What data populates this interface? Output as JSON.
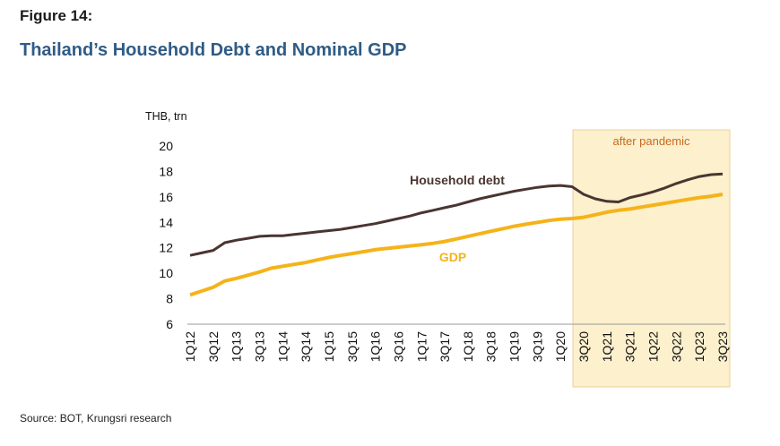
{
  "header": {
    "figure_label": "Figure 14:",
    "title": "Thailand’s Household Debt and Nominal GDP"
  },
  "footer": {
    "source": "Source: BOT, Krungsri research"
  },
  "colors": {
    "debt": "#4a3530",
    "gdp": "#f5b31a",
    "shade_fill": "#fcf0cd",
    "shade_border": "#e8d29a",
    "shade_text": "#c86a1e",
    "axis": "#999999"
  },
  "chart_data": {
    "type": "line",
    "title": "Thailand’s Household Debt and Nominal GDP",
    "ylabel": "THB, trn",
    "xlabel": "",
    "ylim": [
      6,
      20
    ],
    "yticks": [
      6,
      8,
      10,
      12,
      14,
      16,
      18,
      20
    ],
    "x": [
      "1Q12",
      "2Q12",
      "3Q12",
      "4Q12",
      "1Q13",
      "2Q13",
      "3Q13",
      "4Q13",
      "1Q14",
      "2Q14",
      "3Q14",
      "4Q14",
      "1Q15",
      "2Q15",
      "3Q15",
      "4Q15",
      "1Q16",
      "2Q16",
      "3Q16",
      "4Q16",
      "1Q17",
      "2Q17",
      "3Q17",
      "4Q17",
      "1Q18",
      "2Q18",
      "3Q18",
      "4Q18",
      "1Q19",
      "2Q19",
      "3Q19",
      "4Q19",
      "1Q20",
      "2Q20",
      "3Q20",
      "4Q20",
      "1Q21",
      "2Q21",
      "3Q21",
      "4Q21",
      "1Q22",
      "2Q22",
      "3Q22",
      "4Q22",
      "1Q23",
      "2Q23",
      "3Q23"
    ],
    "x_tick_labels": [
      "1Q12",
      "3Q12",
      "1Q13",
      "3Q13",
      "1Q14",
      "3Q14",
      "1Q15",
      "3Q15",
      "1Q16",
      "3Q16",
      "1Q17",
      "3Q17",
      "1Q18",
      "3Q18",
      "1Q19",
      "3Q19",
      "1Q20",
      "3Q20",
      "1Q21",
      "3Q21",
      "1Q22",
      "3Q22",
      "1Q23",
      "3Q23"
    ],
    "series": [
      {
        "name": "Household debt",
        "values": [
          11.4,
          11.6,
          11.8,
          12.4,
          12.6,
          12.75,
          12.9,
          12.95,
          12.95,
          13.05,
          13.15,
          13.25,
          13.35,
          13.45,
          13.6,
          13.75,
          13.9,
          14.1,
          14.3,
          14.5,
          14.75,
          14.95,
          15.15,
          15.35,
          15.6,
          15.85,
          16.05,
          16.25,
          16.45,
          16.6,
          16.75,
          16.85,
          16.9,
          16.8,
          16.2,
          15.85,
          15.65,
          15.6,
          15.95,
          16.15,
          16.4,
          16.7,
          17.05,
          17.35,
          17.6,
          17.75,
          17.8
        ]
      },
      {
        "name": "GDP",
        "values": [
          8.3,
          8.6,
          8.9,
          9.4,
          9.6,
          9.85,
          10.1,
          10.4,
          10.55,
          10.7,
          10.85,
          11.05,
          11.25,
          11.4,
          11.55,
          11.7,
          11.85,
          11.95,
          12.05,
          12.15,
          12.25,
          12.35,
          12.5,
          12.7,
          12.9,
          13.1,
          13.3,
          13.5,
          13.7,
          13.85,
          14.0,
          14.15,
          14.25,
          14.3,
          14.4,
          14.6,
          14.8,
          14.95,
          15.05,
          15.2,
          15.35,
          15.5,
          15.65,
          15.8,
          15.95,
          16.05,
          16.2
        ]
      }
    ],
    "annotations": {
      "shaded_region": {
        "from": "3Q20",
        "to": "3Q23",
        "label": "after pandemic"
      },
      "debt_label": "Household debt",
      "gdp_label": "GDP"
    },
    "grid": false,
    "legend": "none"
  }
}
